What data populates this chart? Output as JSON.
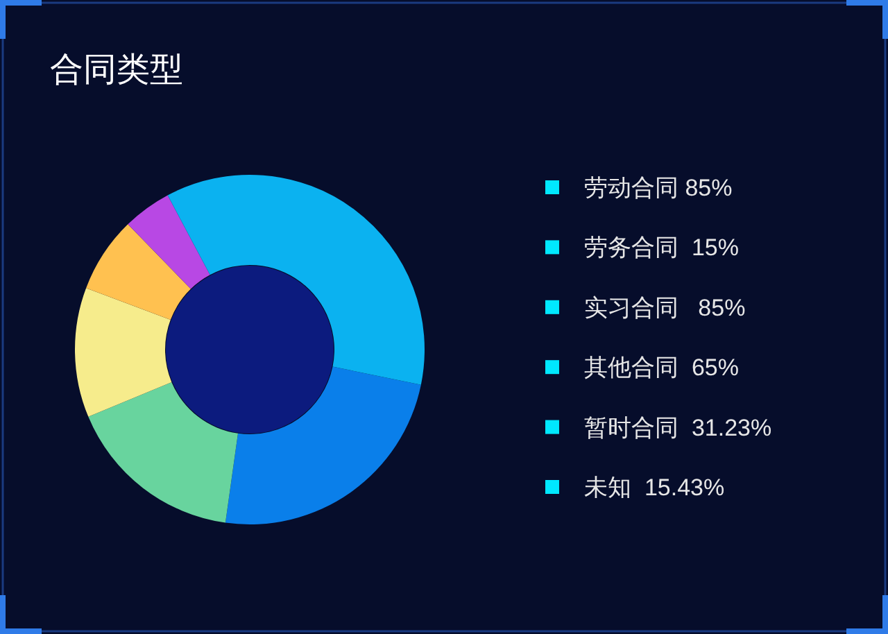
{
  "chart_data": [
    {
      "type": "donut",
      "title": "合同类型",
      "categories": [
        null,
        null,
        null,
        null,
        null,
        null
      ],
      "values": [
        24,
        16.5,
        12,
        7,
        4.5,
        36
      ],
      "colors": [
        "#0a7fea",
        "#68d49e",
        "#f6ec8c",
        "#ffc150",
        "#b848e4",
        "#0bb2f0"
      ]
    },
    {
      "type": "other",
      "annotations": [
        "劳动合同 85%",
        "劳务合同  15%",
        "实习合同   85%",
        "其他合同  65%",
        "暂时合同  31.23%",
        "未知  15.43%"
      ]
    }
  ]
}
